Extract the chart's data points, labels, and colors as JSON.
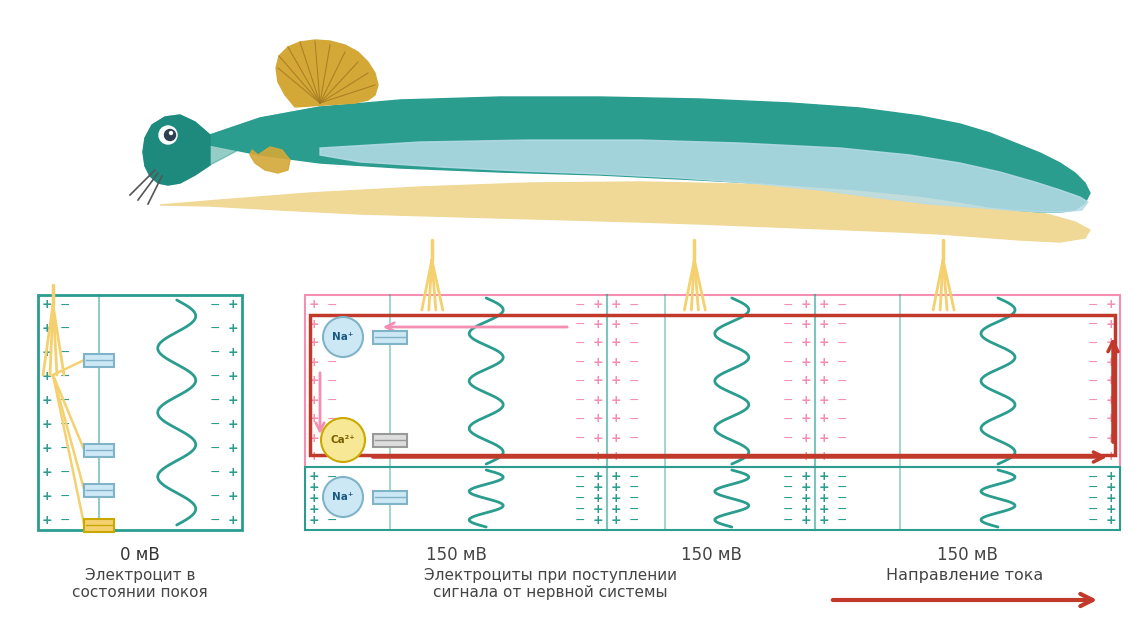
{
  "bg_color": "#ffffff",
  "teal": "#2a9d8f",
  "light_teal": "#a8d8d8",
  "yellow": "#f4d06f",
  "pink": "#f48fb1",
  "red": "#c0392b",
  "blue_gray": "#7fb3c8",
  "light_blue": "#b8d8e8",
  "sand": "#f0d896",
  "label_0mv": "0 мВ",
  "label_150mv": "150 мВ",
  "label_rest": "Электроцит в\nсостоянии покоя",
  "label_active": "Электроциты при поступлении\nсигнала от нервной системы",
  "label_direction": "Направление тока",
  "label_na": "Na⁺",
  "label_ca": "Ca²⁺"
}
